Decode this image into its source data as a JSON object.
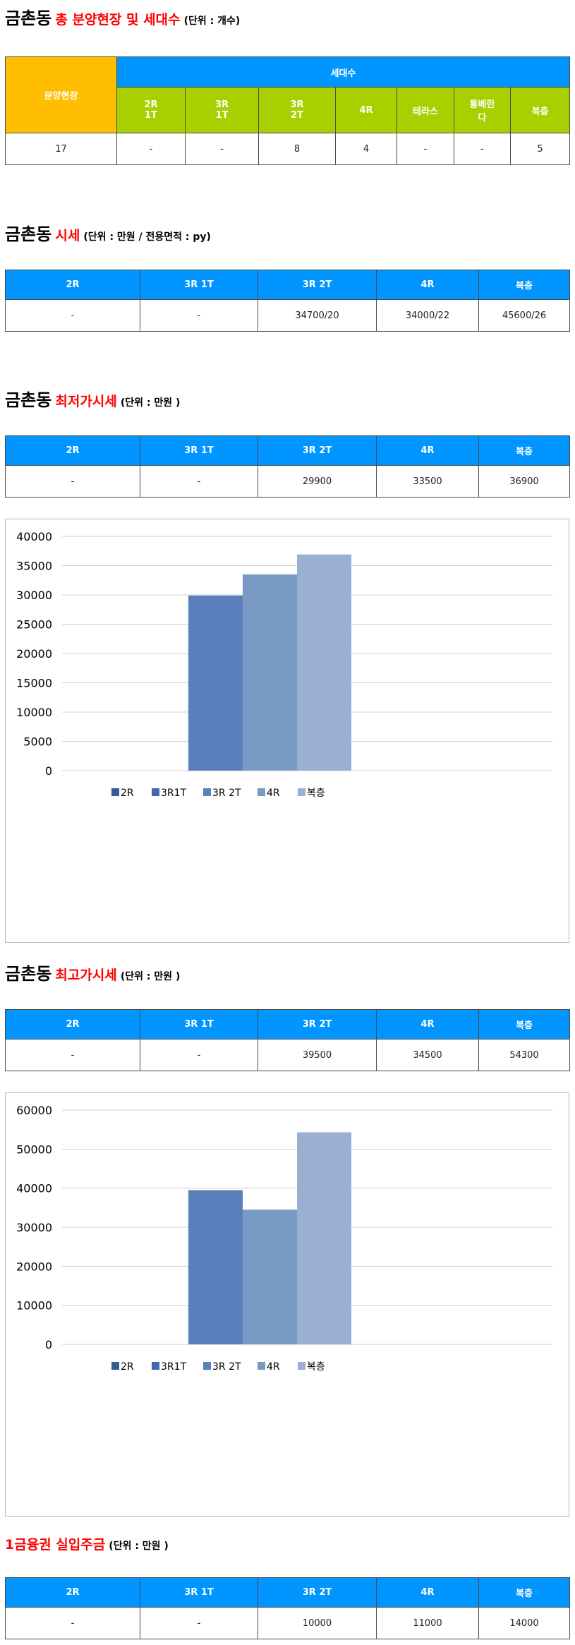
{
  "section1": {
    "title_main": "금촌동",
    "title_red": "총 분양현장 및 세대수",
    "title_unit": "(단위 : 개수)",
    "header_site": "분양현장",
    "header_households": "세대수",
    "columns": [
      {
        "line1": "2R",
        "line2": "1T"
      },
      {
        "line1": "3R",
        "line2": "1T"
      },
      {
        "line1": "3R",
        "line2": "2T"
      },
      {
        "line1": "4R",
        "line2": ""
      },
      {
        "line1": "테라스",
        "line2": ""
      },
      {
        "line1": "통베란",
        "line2": "다"
      },
      {
        "line1": "복층",
        "line2": ""
      }
    ],
    "row": [
      "17",
      "-",
      "-",
      "8",
      "4",
      "-",
      "-",
      "5"
    ]
  },
  "section2": {
    "title_main": "금촌동",
    "title_red": "시세",
    "title_unit": "(단위 : 만원 / 전용면적 : py)",
    "headers": [
      "2R",
      "3R 1T",
      "3R 2T",
      "4R",
      "복층"
    ],
    "row": [
      "-",
      "-",
      "34700/20",
      "34000/22",
      "45600/26"
    ]
  },
  "section3": {
    "title_main": "금촌동",
    "title_red": "최저가시세",
    "title_unit": "(단위 : 만원 )",
    "headers": [
      "2R",
      "3R 1T",
      "3R 2T",
      "4R",
      "복층"
    ],
    "row": [
      "-",
      "-",
      "29900",
      "33500",
      "36900"
    ]
  },
  "section4": {
    "title_main": "금촌동",
    "title_red": "최고가시세",
    "title_unit": "(단위 : 만원 )",
    "headers": [
      "2R",
      "3R 1T",
      "3R 2T",
      "4R",
      "복층"
    ],
    "row": [
      "-",
      "-",
      "39500",
      "34500",
      "54300"
    ]
  },
  "section5": {
    "title_red": "1금융권 실입주금",
    "title_unit": "(단위 : 만원 )",
    "headers": [
      "2R",
      "3R 1T",
      "3R 2T",
      "4R",
      "복층"
    ],
    "row": [
      "-",
      "-",
      "10000",
      "11000",
      "14000"
    ]
  },
  "chart_data": [
    {
      "type": "bar",
      "series": [
        {
          "name": "2R",
          "value": 0,
          "color": "#3a5a94"
        },
        {
          "name": "3R1T",
          "value": 0,
          "color": "#4468ab"
        },
        {
          "name": "3R 2T",
          "value": 29900,
          "color": "#5a7fba"
        },
        {
          "name": "4R",
          "value": 33500,
          "color": "#7a9ac6"
        },
        {
          "name": "복층",
          "value": 36900,
          "color": "#9ab0d2"
        }
      ],
      "ylim": [
        0,
        40000
      ],
      "yticks": [
        "40000",
        "35000",
        "30000",
        "25000",
        "20000",
        "15000",
        "10000",
        "5000",
        "0"
      ],
      "grid": true,
      "legend": "bottom"
    },
    {
      "type": "bar",
      "series": [
        {
          "name": "2R",
          "value": 0,
          "color": "#3a5a94"
        },
        {
          "name": "3R1T",
          "value": 0,
          "color": "#4468ab"
        },
        {
          "name": "3R 2T",
          "value": 39500,
          "color": "#5a7fba"
        },
        {
          "name": "4R",
          "value": 34500,
          "color": "#7a9ac6"
        },
        {
          "name": "복층",
          "value": 54300,
          "color": "#9ab0d2"
        }
      ],
      "ylim": [
        0,
        60000
      ],
      "yticks": [
        "60000",
        "50000",
        "40000",
        "30000",
        "20000",
        "10000",
        "0"
      ],
      "grid": true,
      "legend": "bottom"
    }
  ]
}
